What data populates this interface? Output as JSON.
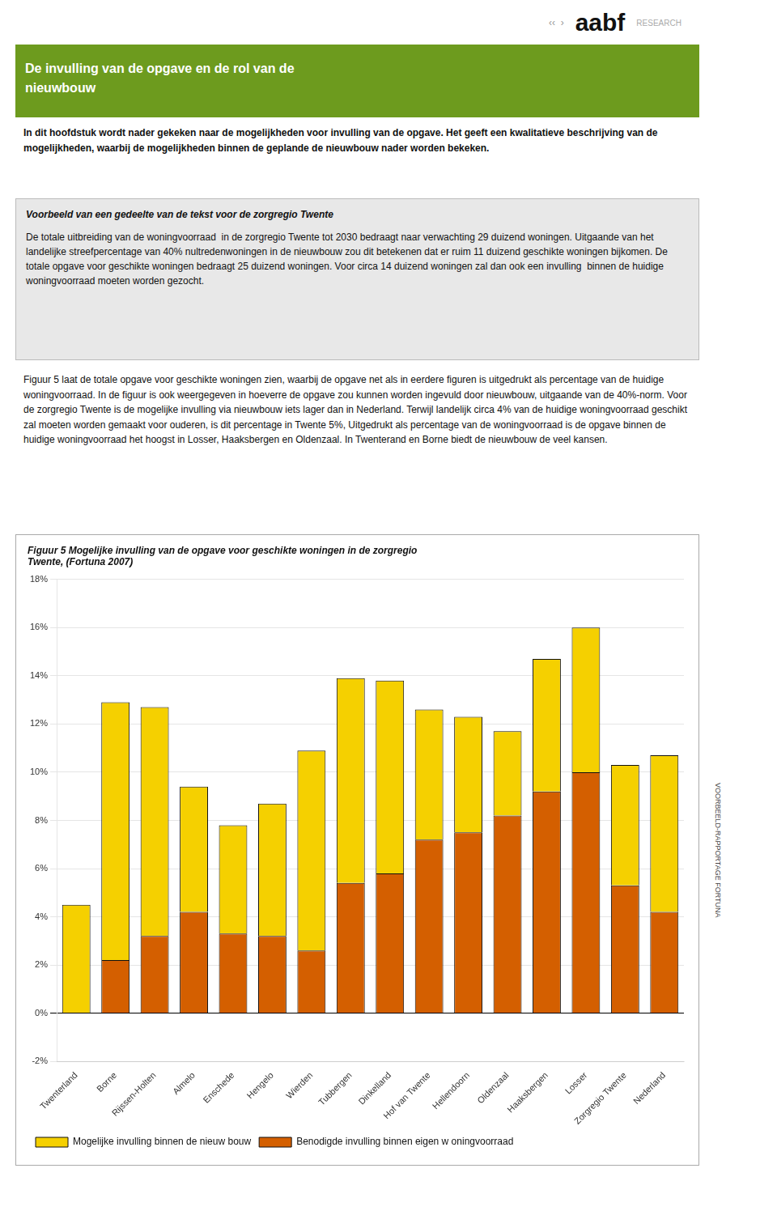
{
  "chart_data": {
    "type": "bar",
    "title": "Figuur 5 Mogelijke invulling van de opgave voor geschikte woningen in de zorgregio\nTwente, (Fortuna 2007)",
    "annotations": [
      "‹‹  ›",
      "aabf",
      "RESEARCH",
      "De invulling van de opgave en de rol van de\nnieuwbouw",
      "In dit hoofdstuk wordt nader gekeken naar de mogelijkheden voor invulling van de opgave. Het geeft een kwalitatieve beschrijving van de mogelijkheden, waarbij de mogelijkheden binnen de geplande de nieuwbouw nader worden bekeken.",
      "Voorbeeld van een gedeelte van de tekst voor de zorgregio Twente",
      "De totale uitbreiding van de woningvoorraad  in de zorgregio Twente tot 2030 bedraagt naar verwachting 29 duizend woningen. Uitgaande van het landelijke streefpercentage van 40% nultredenwoningen in de nieuwbouw zou dit betekenen dat er ruim 11 duizend geschikte woningen bijkomen. De totale opgave voor geschikte woningen bedraagt 25 duizend woningen. Voor circa 14 duizend woningen zal dan ook een invulling  binnen de huidige woningvoorraad moeten worden gezocht.",
      "Figuur 5 laat de totale opgave voor geschikte woningen zien, waarbij de opgave net als in eerdere figuren is uitgedrukt als percentage van de huidige woningvoorraad. In de figuur is ook weergegeven in hoeverre de opgave zou kunnen worden ingevuld door nieuwbouw, uitgaande van de 40%-norm. Voor de zorgregio Twente is de mogelijke invulling via nieuwbouw iets lager dan in Nederland. Terwijl landelijk circa 4% van de huidige woningvoorraad geschikt zal moeten worden gemaakt voor ouderen, is dit percentage in Twente 5%, Uitgedrukt als percentage van de woningvoorraad is de opgave binnen de huidige woningvoorraad het hoogst in Losser, Haaksbergen en Oldenzaal. In Twenterand en Borne biedt de nieuwbouw de veel kansen.",
      "VOORBEELD-RAPPORTAGE FORTUNA"
    ],
    "categories": [
      "Twenterland",
      "Borne",
      "Rijssen-Holten",
      "Almelo",
      "Enschede",
      "Hengelo",
      "Wierden",
      "Tubbergen",
      "Dinkelland",
      "Hof van Twente",
      "Hellendoorn",
      "Oldenzaal",
      "Haaksbergen",
      "Losser",
      "Zorgregio Twente",
      "Nederland"
    ],
    "series": [
      {
        "name": "Benodigde invulling binnen eigen w oningvoorraad",
        "color": "#d45f00",
        "values": [
          0.0,
          2.2,
          3.2,
          4.2,
          3.3,
          3.2,
          2.6,
          5.4,
          5.8,
          7.2,
          7.5,
          8.2,
          9.2,
          10.0,
          5.3,
          4.2
        ]
      },
      {
        "name": "Mogelijke invulling binnen de nieuw bouw",
        "color": "#f5d000",
        "values": [
          4.5,
          10.7,
          9.5,
          5.2,
          4.5,
          5.5,
          8.3,
          8.5,
          8.0,
          5.4,
          4.8,
          3.5,
          5.5,
          6.0,
          5.0,
          6.5
        ]
      }
    ],
    "stacked": true,
    "ylim": [
      -2,
      18
    ],
    "yticks": [
      {
        "value": -2,
        "label": "-2%"
      },
      {
        "value": 0,
        "label": "0%"
      },
      {
        "value": 2,
        "label": "2%"
      },
      {
        "value": 4,
        "label": "4%"
      },
      {
        "value": 6,
        "label": "6%"
      },
      {
        "value": 8,
        "label": "8%"
      },
      {
        "value": 10,
        "label": "10%"
      },
      {
        "value": 12,
        "label": "12%"
      },
      {
        "value": 14,
        "label": "14%"
      },
      {
        "value": 16,
        "label": "16%"
      },
      {
        "value": 18,
        "label": "18%"
      }
    ],
    "grid": true,
    "legend": "bottom"
  }
}
